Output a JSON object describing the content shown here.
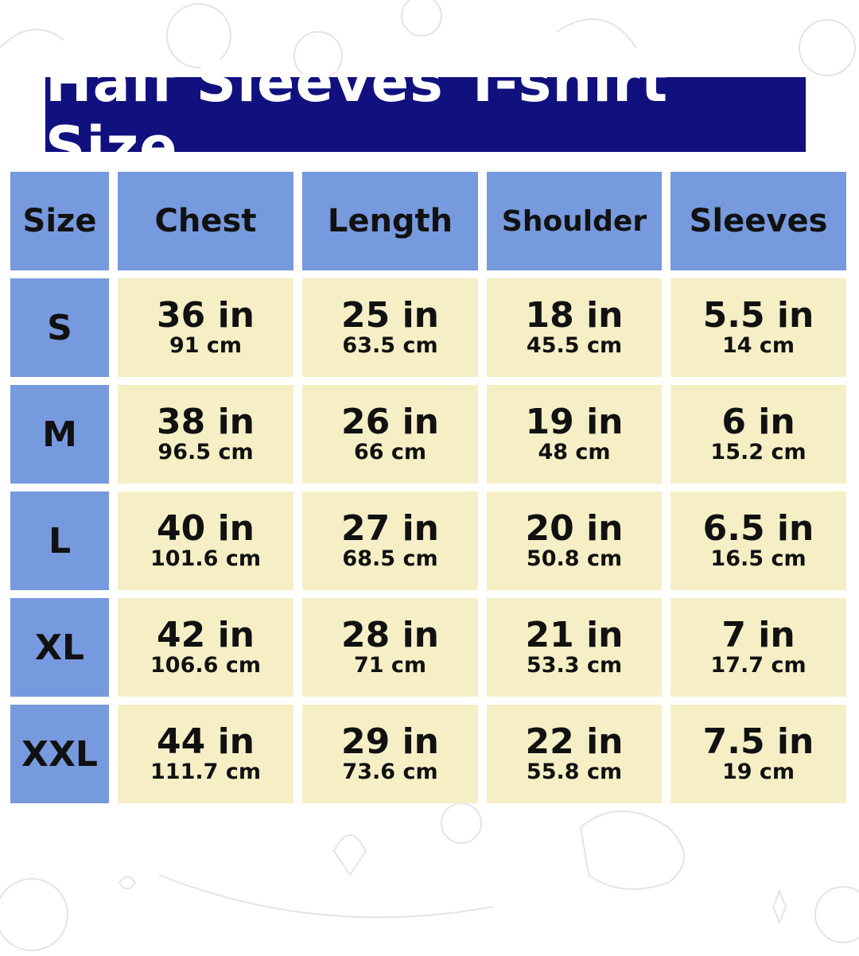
{
  "title": "Half Sleeves T-shirt Size",
  "colors": {
    "title_bg": "#10107f",
    "header_bg": "#7799dd",
    "cell_bg": "#f6efc6"
  },
  "headers": [
    "Size",
    "Chest",
    "Length",
    "Shoulder",
    "Sleeves"
  ],
  "rows": [
    {
      "size": "S",
      "values": [
        {
          "in": "36 in",
          "cm": "91 cm"
        },
        {
          "in": "25 in",
          "cm": "63.5 cm"
        },
        {
          "in": "18 in",
          "cm": "45.5 cm"
        },
        {
          "in": "5.5 in",
          "cm": "14 cm"
        }
      ]
    },
    {
      "size": "M",
      "values": [
        {
          "in": "38 in",
          "cm": "96.5 cm"
        },
        {
          "in": "26 in",
          "cm": "66 cm"
        },
        {
          "in": "19 in",
          "cm": "48 cm"
        },
        {
          "in": "6 in",
          "cm": "15.2 cm"
        }
      ]
    },
    {
      "size": "L",
      "values": [
        {
          "in": "40 in",
          "cm": "101.6 cm"
        },
        {
          "in": "27 in",
          "cm": "68.5 cm"
        },
        {
          "in": "20 in",
          "cm": "50.8 cm"
        },
        {
          "in": "6.5 in",
          "cm": "16.5 cm"
        }
      ]
    },
    {
      "size": "XL",
      "values": [
        {
          "in": "42 in",
          "cm": "106.6 cm"
        },
        {
          "in": "28 in",
          "cm": "71 cm"
        },
        {
          "in": "21 in",
          "cm": "53.3 cm"
        },
        {
          "in": "7 in",
          "cm": "17.7 cm"
        }
      ]
    },
    {
      "size": "XXL",
      "values": [
        {
          "in": "44 in",
          "cm": "111.7 cm"
        },
        {
          "in": "29 in",
          "cm": "73.6 cm"
        },
        {
          "in": "22 in",
          "cm": "55.8 cm"
        },
        {
          "in": "7.5 in",
          "cm": "19 cm"
        }
      ]
    }
  ]
}
